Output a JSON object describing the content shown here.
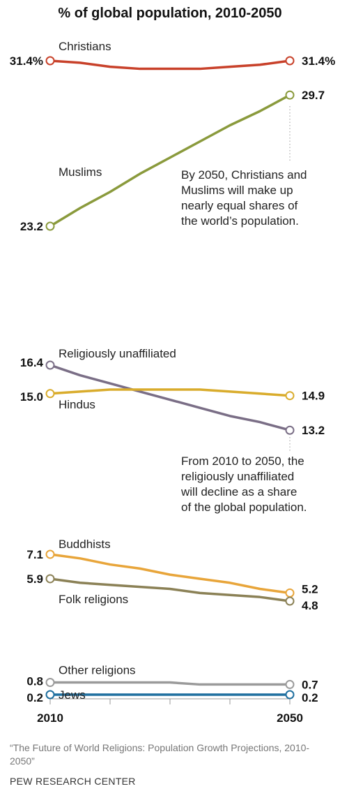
{
  "title": "% of global population, 2010-2050",
  "chart_data": {
    "type": "line",
    "x": [
      2010,
      2015,
      2020,
      2025,
      2030,
      2035,
      2040,
      2045,
      2050
    ],
    "xtick_labels": [
      "2010",
      "2050"
    ],
    "series": [
      {
        "name": "Christians",
        "color": "#c8412a",
        "values": [
          31.4,
          31.3,
          31.1,
          31.0,
          31.0,
          31.0,
          31.1,
          31.2,
          31.4
        ],
        "start_label": "31.4%",
        "end_label": "31.4%"
      },
      {
        "name": "Muslims",
        "color": "#8a9a3c",
        "values": [
          23.2,
          24.1,
          24.9,
          25.8,
          26.6,
          27.4,
          28.2,
          28.9,
          29.7
        ],
        "start_label": "23.2",
        "end_label": "29.7"
      },
      {
        "name": "Religiously unaffiliated",
        "color": "#7a6e86",
        "values": [
          16.4,
          15.9,
          15.5,
          15.1,
          14.7,
          14.3,
          13.9,
          13.6,
          13.2
        ],
        "start_label": "16.4",
        "end_label": "13.2"
      },
      {
        "name": "Hindus",
        "color": "#d9ac2c",
        "values": [
          15.0,
          15.1,
          15.2,
          15.2,
          15.2,
          15.2,
          15.1,
          15.0,
          14.9
        ],
        "start_label": "15.0",
        "end_label": "14.9"
      },
      {
        "name": "Buddhists",
        "color": "#e8a53a",
        "values": [
          7.1,
          6.9,
          6.6,
          6.4,
          6.1,
          5.9,
          5.7,
          5.4,
          5.2
        ],
        "start_label": "7.1",
        "end_label": "5.2"
      },
      {
        "name": "Folk religions",
        "color": "#8b8156",
        "values": [
          5.9,
          5.7,
          5.6,
          5.5,
          5.4,
          5.2,
          5.1,
          5.0,
          4.8
        ],
        "start_label": "5.9",
        "end_label": "4.8"
      },
      {
        "name": "Other religions",
        "color": "#9a9a9a",
        "values": [
          0.8,
          0.8,
          0.8,
          0.8,
          0.8,
          0.7,
          0.7,
          0.7,
          0.7
        ],
        "start_label": "0.8",
        "end_label": "0.7"
      },
      {
        "name": "Jews",
        "color": "#1f6f9f",
        "values": [
          0.2,
          0.2,
          0.2,
          0.2,
          0.2,
          0.2,
          0.2,
          0.2,
          0.2
        ],
        "start_label": "0.2",
        "end_label": "0.2"
      }
    ]
  },
  "annotations": {
    "muslims_note": [
      "By 2050, Christians and",
      "Muslims will make up",
      "nearly equal shares of",
      "the world’s population."
    ],
    "unaffiliated_note": [
      "From 2010 to 2050, the",
      "religiously unaffiliated",
      "will decline as a share",
      "of the global population."
    ]
  },
  "source": "“The Future of World Religions: Population Growth Projections, 2010-2050”",
  "organization": "PEW RESEARCH CENTER"
}
